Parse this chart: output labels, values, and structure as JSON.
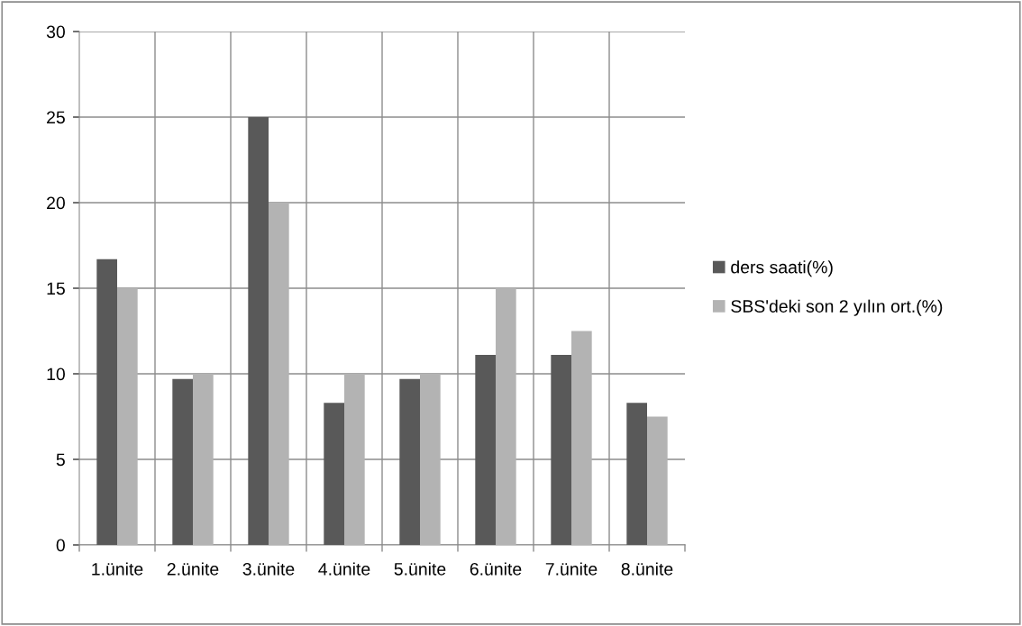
{
  "chart_data": {
    "type": "bar",
    "categories": [
      "1.ünite",
      "2.ünite",
      "3.ünite",
      "4.ünite",
      "5.ünite",
      "6.ünite",
      "7.ünite",
      "8.ünite"
    ],
    "series": [
      {
        "name": "ders saati(%)",
        "color": "#595959",
        "values": [
          16.7,
          9.7,
          25,
          8.3,
          9.7,
          11.1,
          11.1,
          8.3
        ]
      },
      {
        "name": "SBS'deki son 2 yılın ort.(%)",
        "color": "#b3b3b3",
        "values": [
          15,
          10,
          20,
          10,
          10,
          15,
          12.5,
          7.5
        ]
      }
    ],
    "ylim": [
      0,
      30
    ],
    "yticks": [
      0,
      5,
      10,
      15,
      20,
      25,
      30
    ],
    "grid": true,
    "legend": "right"
  }
}
